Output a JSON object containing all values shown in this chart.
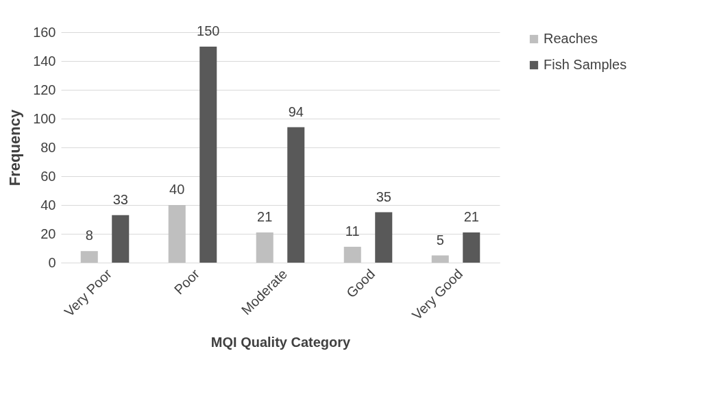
{
  "chart_data": {
    "type": "bar",
    "xlabel": "MQI Quality Category",
    "ylabel": "Frequency",
    "categories": [
      "Very Poor",
      "Poor",
      "Moderate",
      "Good",
      "Very Good"
    ],
    "series": [
      {
        "name": "Reaches",
        "color": "#bfbfbf",
        "values": [
          8,
          40,
          21,
          11,
          5
        ]
      },
      {
        "name": "Fish Samples",
        "color": "#595959",
        "values": [
          33,
          150,
          94,
          35,
          21
        ]
      }
    ],
    "ylim": [
      0,
      160
    ],
    "yticks": [
      0,
      20,
      40,
      60,
      80,
      100,
      120,
      140,
      160
    ],
    "grid": "y",
    "legend": "right",
    "data_labels": true
  }
}
